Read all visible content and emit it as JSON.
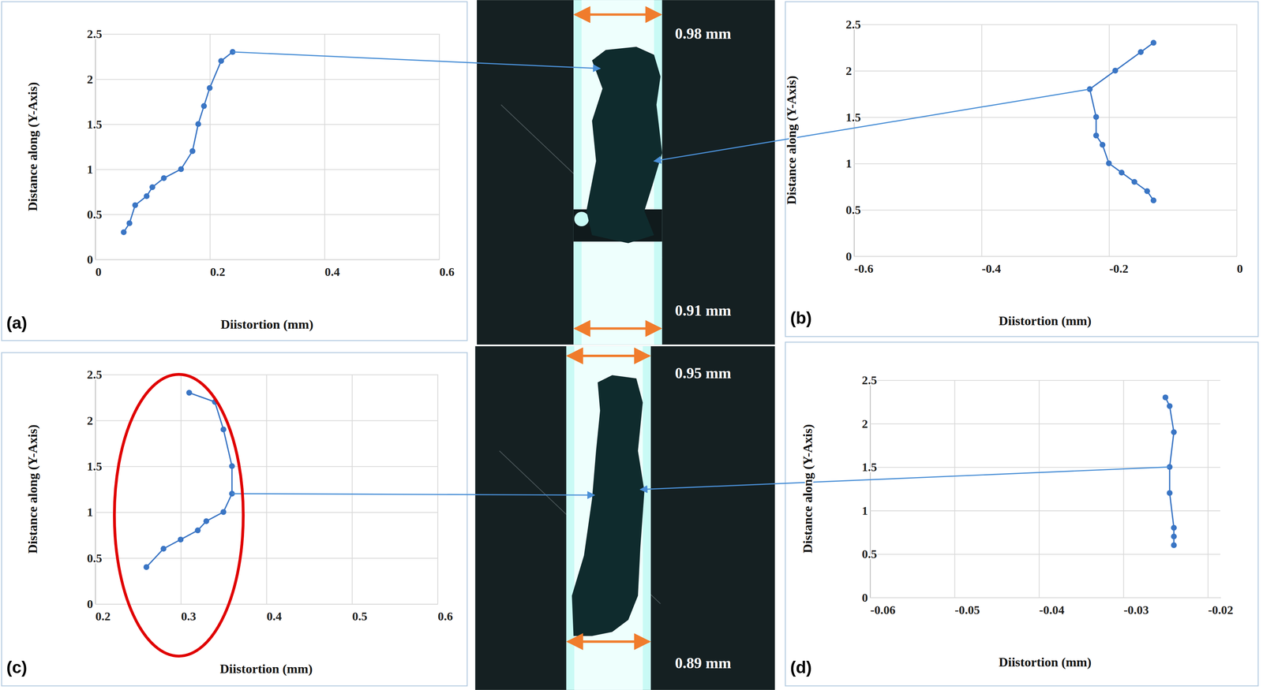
{
  "chart_data": [
    {
      "type": "line",
      "panel": "(a)",
      "x_label": "Diistortion (mm)",
      "y_label": "Distance along (Y-Axis)",
      "x": [
        0.05,
        0.06,
        0.07,
        0.09,
        0.1,
        0.12,
        0.15,
        0.17,
        0.18,
        0.19,
        0.2,
        0.22,
        0.24
      ],
      "values": [
        0.3,
        0.4,
        0.6,
        0.7,
        0.8,
        0.9,
        1.0,
        1.2,
        1.5,
        1.7,
        1.9,
        2.2,
        2.3
      ],
      "color": "#3a75c4",
      "marker": "circle",
      "xlim": [
        0,
        0.6
      ],
      "ylim": [
        0,
        2.5
      ],
      "xticks": [
        0,
        0.2,
        0.4,
        0.6
      ],
      "yticks": [
        0,
        0.5,
        1,
        1.5,
        2,
        2.5
      ],
      "grid": true
    },
    {
      "type": "line",
      "panel": "(b)",
      "x_label": "Diistortion (mm)",
      "y_label": "Distance along (Y-Axis)",
      "x": [
        -0.13,
        -0.14,
        -0.16,
        -0.18,
        -0.2,
        -0.21,
        -0.22,
        -0.22,
        -0.23,
        -0.19,
        -0.15,
        -0.13
      ],
      "values": [
        0.6,
        0.7,
        0.8,
        0.9,
        1.0,
        1.2,
        1.3,
        1.5,
        1.8,
        2.0,
        2.2,
        2.3
      ],
      "color": "#3a75c4",
      "marker": "circle",
      "xlim": [
        -0.6,
        0
      ],
      "ylim": [
        0,
        2.5
      ],
      "xticks": [
        -0.6,
        -0.4,
        -0.2,
        0
      ],
      "yticks": [
        0,
        0.5,
        1,
        1.5,
        2,
        2.5
      ],
      "grid": true
    },
    {
      "type": "line",
      "panel": "(c)",
      "x_label": "Diistortion (mm)",
      "y_label": "Distance along (Y-Axis)",
      "x": [
        0.26,
        0.28,
        0.3,
        0.32,
        0.33,
        0.35,
        0.36,
        0.36,
        0.35,
        0.34,
        0.31
      ],
      "values": [
        0.4,
        0.6,
        0.7,
        0.8,
        0.9,
        1.0,
        1.2,
        1.5,
        1.9,
        2.2,
        2.3
      ],
      "color": "#3a75c4",
      "marker": "circle",
      "xlim": [
        0.2,
        0.6
      ],
      "ylim": [
        0,
        2.5
      ],
      "xticks": [
        0.2,
        0.3,
        0.4,
        0.5,
        0.6
      ],
      "yticks": [
        0,
        0.5,
        1,
        1.5,
        2,
        2.5
      ],
      "grid": true
    },
    {
      "type": "line",
      "panel": "(d)",
      "x_label": "Diistortion (mm)",
      "y_label": "Distance along (Y-Axis)",
      "x": [
        -0.024,
        -0.024,
        -0.024,
        -0.0245,
        -0.0245,
        -0.024,
        -0.0245,
        -0.025
      ],
      "values": [
        0.6,
        0.7,
        0.8,
        1.2,
        1.5,
        1.9,
        2.2,
        2.3
      ],
      "color": "#3a75c4",
      "marker": "circle",
      "xlim": [
        -0.06,
        -0.0185
      ],
      "ylim": [
        0,
        2.5
      ],
      "xticks": [
        -0.06,
        -0.05,
        -0.04,
        -0.03,
        -0.02
      ],
      "yticks": [
        0,
        0.5,
        1,
        1.5,
        2,
        2.5
      ],
      "grid": true
    }
  ],
  "photos": [
    {
      "top_width": "0.98 mm",
      "bottom_width": "0.91 mm"
    },
    {
      "top_width": "0.95 mm",
      "bottom_width": "0.89 mm"
    }
  ]
}
